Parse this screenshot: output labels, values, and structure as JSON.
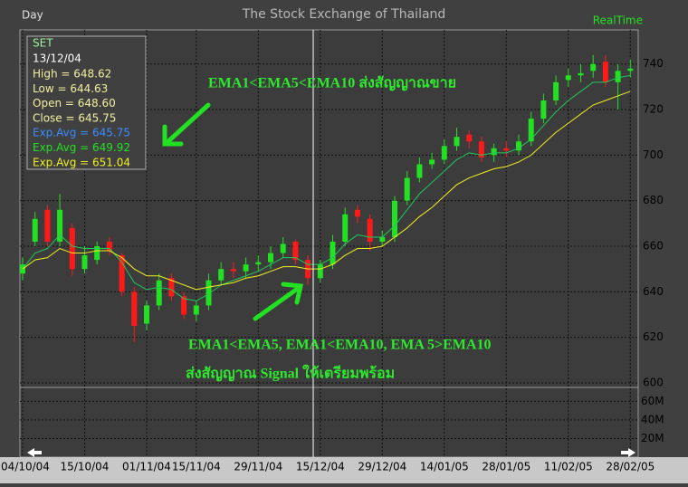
{
  "chart_data": {
    "type": "candlestick",
    "title": "The Stock Exchange of Thailand",
    "period": "Day",
    "mode": "RealTime",
    "categories": [
      "04/10/04",
      null,
      null,
      null,
      null,
      "15/10/04",
      null,
      null,
      null,
      null,
      "01/11/04",
      null,
      null,
      null,
      "15/11/04",
      null,
      null,
      null,
      null,
      "29/11/04",
      null,
      null,
      null,
      null,
      "15/12/04",
      null,
      null,
      null,
      null,
      "29/12/04",
      null,
      null,
      null,
      null,
      "14/01/05",
      null,
      null,
      null,
      null,
      "28/01/05",
      null,
      null,
      null,
      null,
      "11/02/05",
      null,
      null,
      null,
      null,
      "28/02/05"
    ],
    "open": [
      648,
      662,
      676,
      662,
      668,
      650,
      654,
      662,
      656,
      640,
      626,
      634,
      646,
      638,
      630,
      634,
      645,
      650,
      649,
      652,
      653,
      657,
      662,
      654,
      646,
      652,
      662,
      676,
      672,
      662,
      664,
      680,
      690,
      696,
      698,
      704,
      709,
      706,
      700,
      703,
      702,
      706,
      716,
      724,
      733,
      735,
      737,
      741,
      732,
      737
    ],
    "high": [
      655,
      675,
      678,
      683,
      670,
      660,
      662,
      664,
      657,
      642,
      636,
      648,
      648,
      640,
      636,
      648,
      653,
      653,
      655,
      656,
      660,
      664,
      663,
      656,
      654,
      665,
      677,
      678,
      674,
      667,
      682,
      693,
      699,
      701,
      707,
      712,
      711,
      708,
      705,
      706,
      709,
      719,
      727,
      735,
      738,
      740,
      744,
      744,
      740,
      742
    ],
    "low": [
      645,
      660,
      660,
      660,
      647,
      648,
      652,
      656,
      638,
      618,
      623,
      632,
      636,
      628,
      627,
      632,
      643,
      646,
      646,
      649,
      650,
      655,
      652,
      643,
      644,
      650,
      660,
      670,
      658,
      660,
      662,
      678,
      688,
      694,
      696,
      702,
      703,
      697,
      697,
      699,
      700,
      704,
      714,
      722,
      730,
      732,
      734,
      730,
      720,
      734
    ],
    "close": [
      652,
      672,
      662,
      676,
      650,
      656,
      660,
      658,
      640,
      625,
      634,
      645,
      638,
      630,
      634,
      645,
      650,
      649,
      652,
      653,
      657,
      661,
      654,
      646,
      652,
      662,
      674,
      673,
      662,
      664,
      680,
      690,
      696,
      698,
      704,
      708,
      706,
      699,
      703,
      702,
      706,
      716,
      724,
      732,
      735,
      736,
      740,
      732,
      737,
      738
    ],
    "up_color": "#22e022",
    "down_color": "#ff1a1a",
    "series": [
      {
        "color": "#22c85a",
        "values": [
          650,
          657,
          659,
          665,
          660,
          659,
          659,
          659,
          653,
          644,
          641,
          642,
          641,
          637,
          636,
          639,
          643,
          645,
          647,
          649,
          652,
          655,
          655,
          652,
          652,
          655,
          661,
          665,
          664,
          664,
          669,
          676,
          683,
          688,
          693,
          698,
          701,
          700,
          701,
          701,
          703,
          707,
          713,
          719,
          724,
          728,
          732,
          732,
          734,
          735
        ]
      },
      {
        "color": "#f0f020",
        "values": [
          650,
          654,
          655,
          659,
          657,
          657,
          658,
          658,
          655,
          650,
          647,
          647,
          645,
          643,
          641,
          642,
          643,
          644,
          646,
          647,
          649,
          651,
          651,
          650,
          650,
          652,
          656,
          659,
          659,
          660,
          664,
          668,
          673,
          677,
          682,
          687,
          690,
          692,
          694,
          695,
          697,
          700,
          705,
          710,
          714,
          718,
          722,
          724,
          726,
          728
        ]
      }
    ],
    "ylim": [
      598,
      755
    ],
    "yticks": [
      600,
      620,
      640,
      660,
      680,
      700,
      720,
      740
    ],
    "volume_ylim": [
      0,
      75000000
    ],
    "volume_ticks": [
      {
        "value": 20000000,
        "label": "20M"
      },
      {
        "value": 40000000,
        "label": "40M"
      },
      {
        "value": 60000000,
        "label": "60M"
      }
    ],
    "grid": true,
    "info_box": {
      "symbol": "SET",
      "date": "13/12/04",
      "lines": [
        {
          "text": "High  = 648.62",
          "color": "#f0f0a0"
        },
        {
          "text": "Low  = 644.63",
          "color": "#f0f0a0"
        },
        {
          "text": "Open = 648.60",
          "color": "#f0f0a0"
        },
        {
          "text": "Close = 645.75",
          "color": "#f0f0a0"
        },
        {
          "text": "Exp.Avg = 645.75",
          "color": "#3a8cff"
        },
        {
          "text": "Exp.Avg = 649.92",
          "color": "#22e022"
        },
        {
          "text": "Exp.Avg = 651.04",
          "color": "#f0f020"
        }
      ]
    },
    "annotations": [
      "EMA1<EMA5<EMA10 ส่งสัญญาณขาย",
      "EMA1<EMA5, EMA1<EMA10, EMA 5>EMA10",
      "ส่งสัญญาณ Signal ให้เตรียมพร้อม"
    ]
  }
}
